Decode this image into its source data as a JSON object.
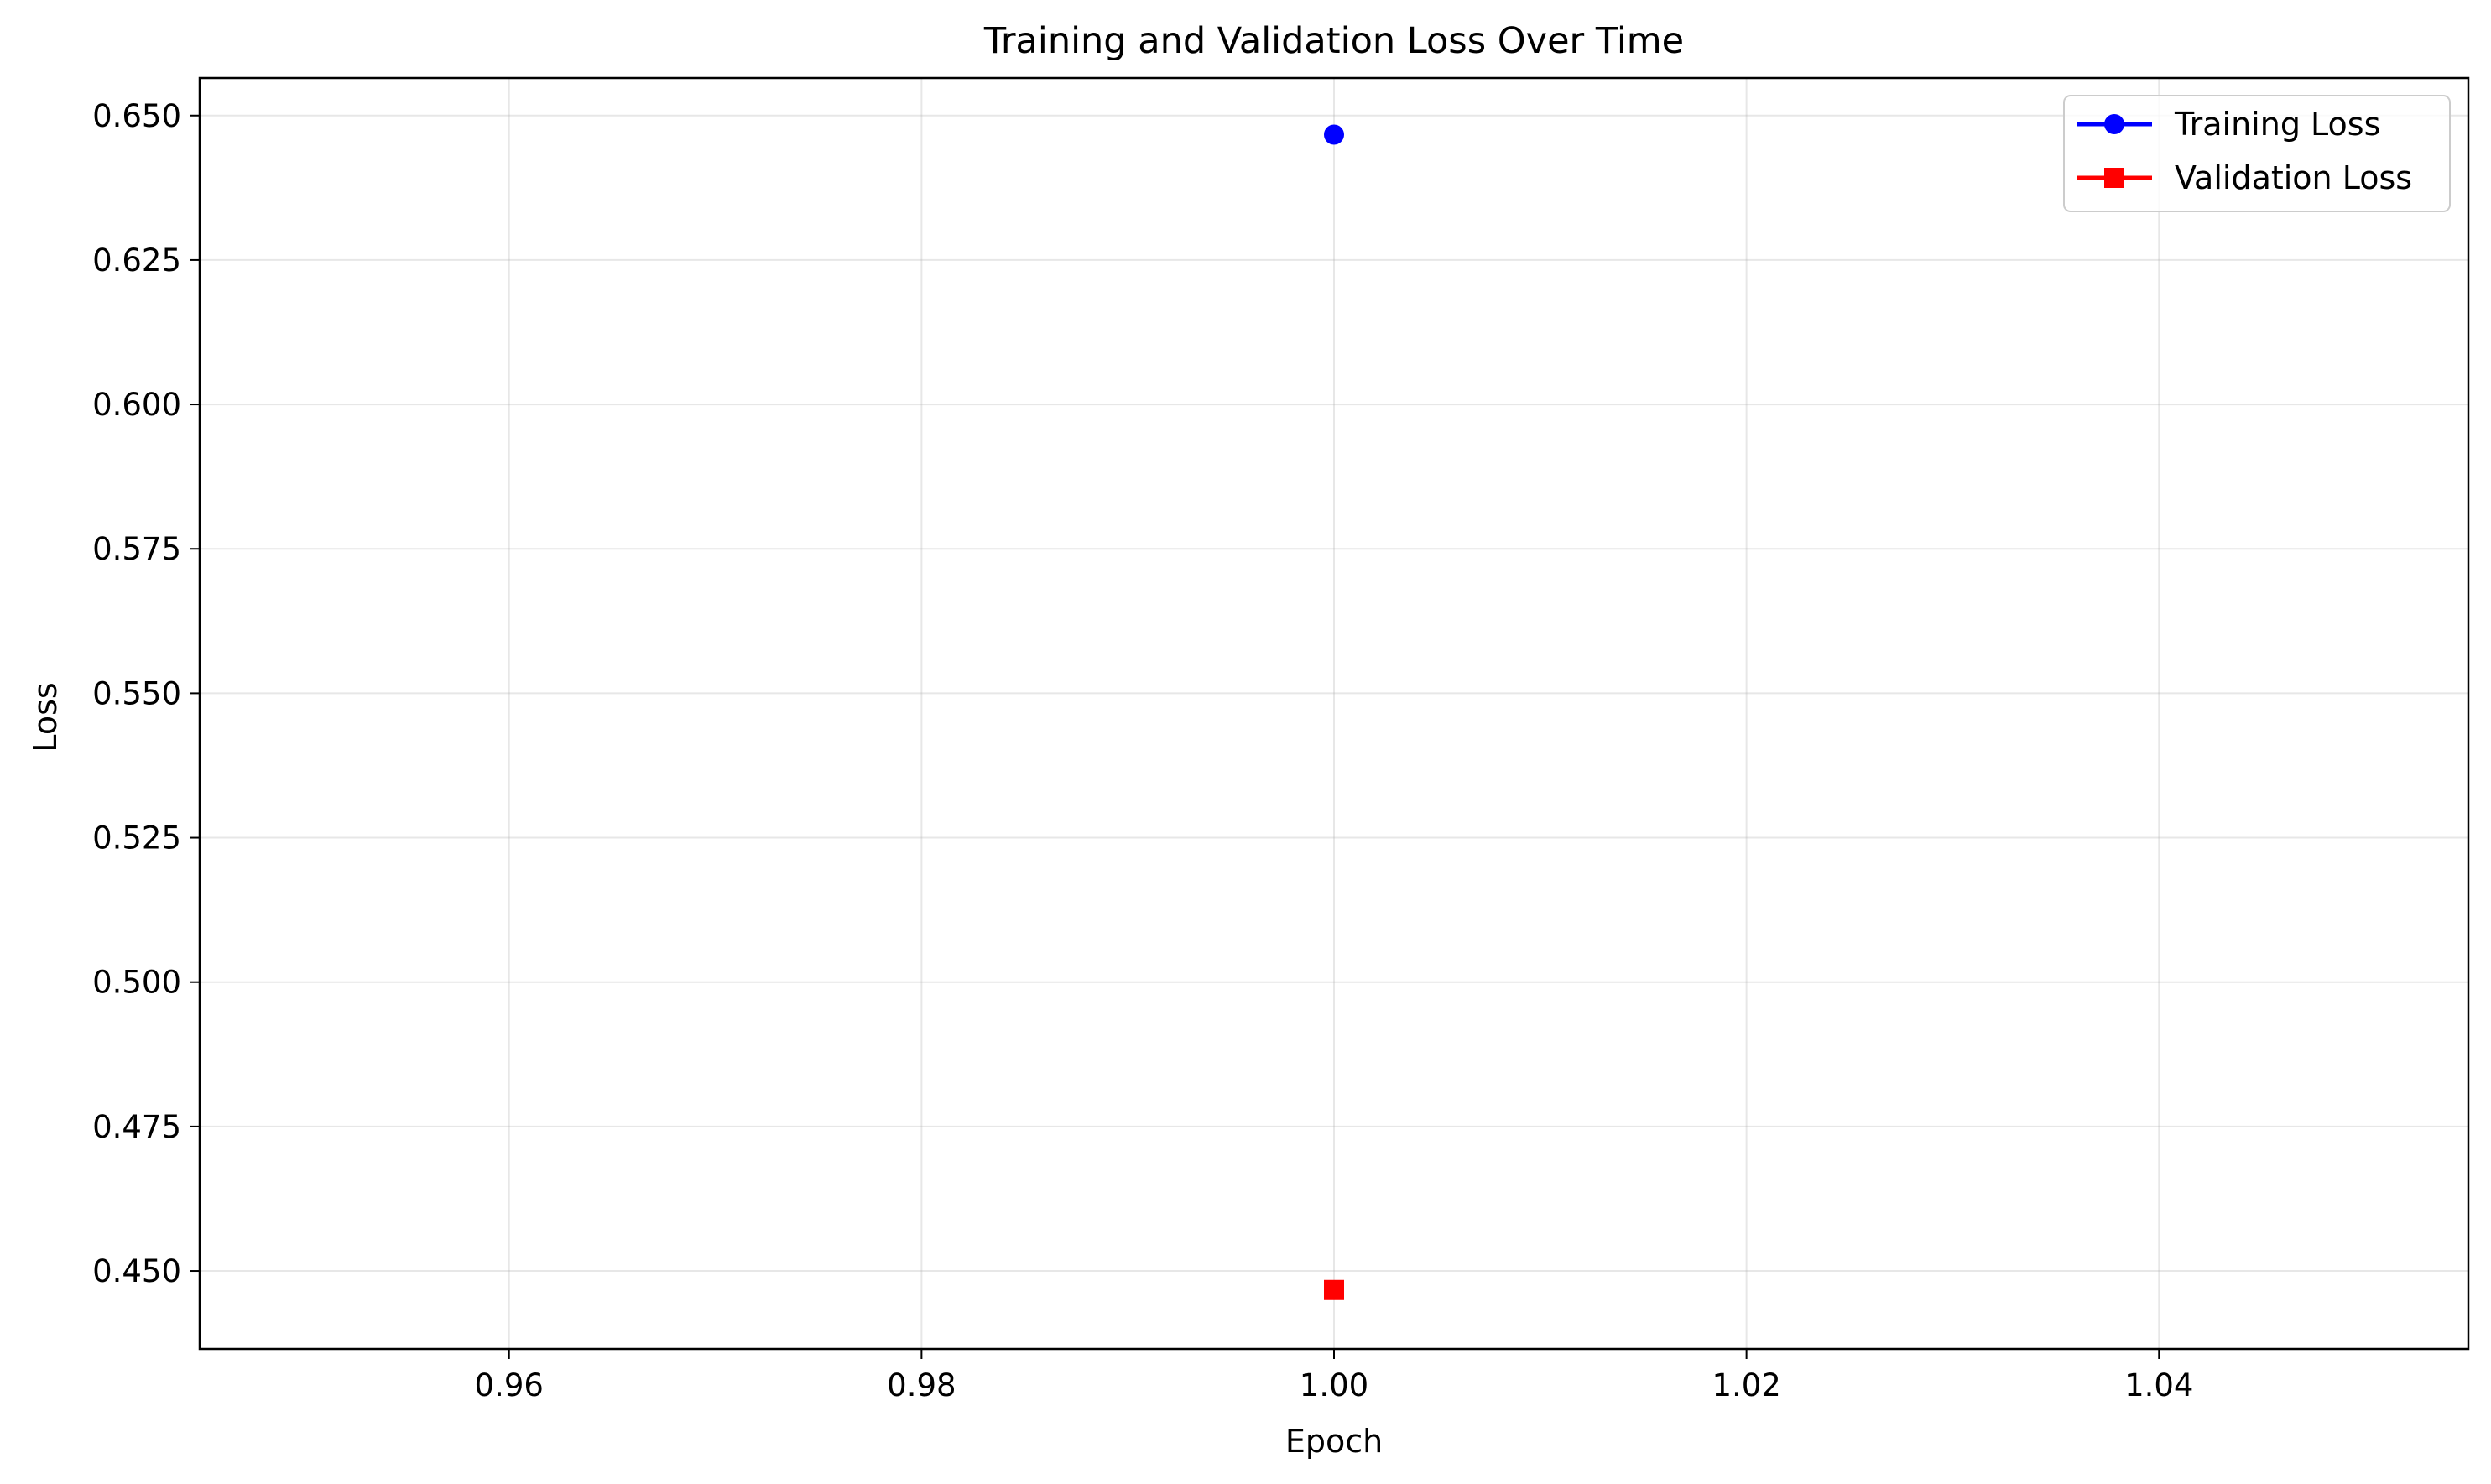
{
  "chart_data": {
    "type": "scatter",
    "title": "Training and Validation Loss Over Time",
    "xlabel": "Epoch",
    "ylabel": "Loss",
    "xlim": [
      0.945,
      1.055
    ],
    "ylim": [
      0.4365,
      0.6565
    ],
    "xticks": [
      0.96,
      0.98,
      1.0,
      1.02,
      1.04
    ],
    "xtick_labels": [
      "0.96",
      "0.98",
      "1.00",
      "1.02",
      "1.04"
    ],
    "yticks": [
      0.45,
      0.475,
      0.5,
      0.525,
      0.55,
      0.575,
      0.6,
      0.625,
      0.65
    ],
    "ytick_labels": [
      "0.450",
      "0.475",
      "0.500",
      "0.525",
      "0.550",
      "0.575",
      "0.600",
      "0.625",
      "0.650"
    ],
    "grid": true,
    "legend_position": "top-right",
    "series": [
      {
        "name": "Training Loss",
        "color": "#0000ff",
        "marker": "circle",
        "x": [
          1.0
        ],
        "y": [
          0.6467
        ]
      },
      {
        "name": "Validation Loss",
        "color": "#ff0000",
        "marker": "square",
        "x": [
          1.0
        ],
        "y": [
          0.4467
        ]
      }
    ]
  }
}
